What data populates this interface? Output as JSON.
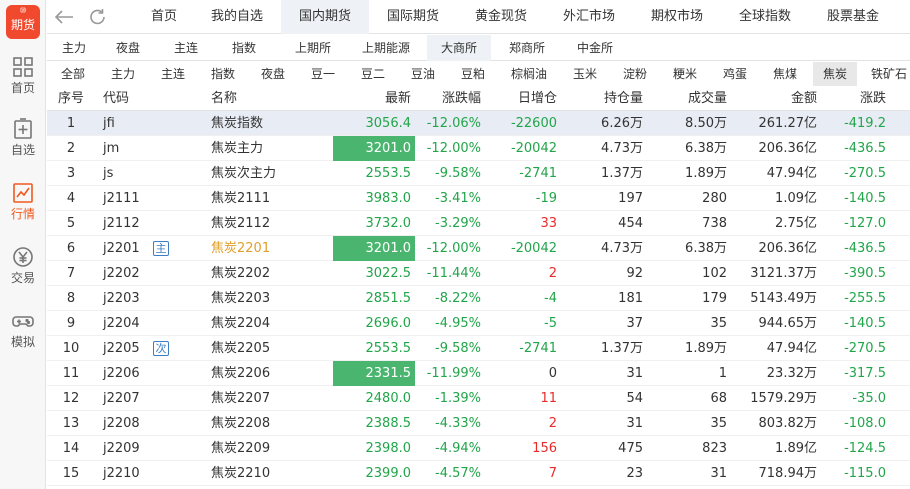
{
  "app": {
    "logo_cap": "⑩",
    "logo_text": "期货"
  },
  "sidebar": {
    "items": [
      {
        "label": "首页",
        "icon": "grid-icon",
        "active": false
      },
      {
        "label": "自选",
        "icon": "add-note-icon",
        "active": false
      },
      {
        "label": "行情",
        "icon": "chart-icon",
        "active": true
      },
      {
        "label": "交易",
        "icon": "yen-icon",
        "active": false
      },
      {
        "label": "模拟",
        "icon": "gamepad-icon",
        "active": false
      }
    ]
  },
  "topnav": {
    "back_icon": "back-arrow-icon",
    "refresh_icon": "refresh-icon",
    "tabs": [
      "首页",
      "我的自选",
      "国内期货",
      "国际期货",
      "黄金现货",
      "外汇市场",
      "期权市场",
      "全球指数",
      "股票基金"
    ],
    "active": 2
  },
  "exchange_tabs": {
    "items": [
      "主力",
      "夜盘",
      "主连",
      "指数",
      "上期所",
      "上期能源",
      "大商所",
      "郑商所",
      "中金所"
    ],
    "active": 6
  },
  "category_tabs": {
    "items": [
      "全部",
      "主力",
      "主连",
      "指数",
      "夜盘",
      "豆一",
      "豆二",
      "豆油",
      "豆粕",
      "棕榈油",
      "玉米",
      "淀粉",
      "粳米",
      "鸡蛋",
      "焦煤",
      "焦炭",
      "铁矿石"
    ],
    "active": 15
  },
  "table": {
    "headers": [
      "序号",
      "代码",
      "名称",
      "最新",
      "涨跌幅",
      "日增仓",
      "持仓量",
      "成交量",
      "金额",
      "涨跌"
    ],
    "rows": [
      {
        "seq": "1",
        "code": "jfi",
        "tag": "",
        "name": "焦炭指数",
        "last": "3056.4",
        "chg": "-12.06%",
        "inc": "-22600",
        "oi": "6.26万",
        "vol": "8.50万",
        "amt": "261.27亿",
        "diff": "-419.2",
        "last_box": false,
        "inc_color": "green",
        "name_color": "",
        "selected": true,
        "bold": true
      },
      {
        "seq": "2",
        "code": "jm",
        "tag": "",
        "name": "焦炭主力",
        "last": "3201.0",
        "chg": "-12.00%",
        "inc": "-20042",
        "oi": "4.73万",
        "vol": "6.38万",
        "amt": "206.36亿",
        "diff": "-436.5",
        "last_box": true,
        "inc_color": "green",
        "name_color": "",
        "selected": false,
        "bold": false
      },
      {
        "seq": "3",
        "code": "js",
        "tag": "",
        "name": "焦炭次主力",
        "last": "2553.5",
        "chg": "-9.58%",
        "inc": "-2741",
        "oi": "1.37万",
        "vol": "1.89万",
        "amt": "47.94亿",
        "diff": "-270.5",
        "last_box": false,
        "inc_color": "green",
        "name_color": "",
        "selected": false,
        "bold": false
      },
      {
        "seq": "4",
        "code": "j2111",
        "tag": "",
        "name": "焦炭2111",
        "last": "3983.0",
        "chg": "-3.41%",
        "inc": "-19",
        "oi": "197",
        "vol": "280",
        "amt": "1.09亿",
        "diff": "-140.5",
        "last_box": false,
        "inc_color": "green",
        "name_color": "",
        "selected": false,
        "bold": false
      },
      {
        "seq": "5",
        "code": "j2112",
        "tag": "",
        "name": "焦炭2112",
        "last": "3732.0",
        "chg": "-3.29%",
        "inc": "33",
        "oi": "454",
        "vol": "738",
        "amt": "2.75亿",
        "diff": "-127.0",
        "last_box": false,
        "inc_color": "red",
        "name_color": "",
        "selected": false,
        "bold": false
      },
      {
        "seq": "6",
        "code": "j2201",
        "tag": "主",
        "name": "焦炭2201",
        "last": "3201.0",
        "chg": "-12.00%",
        "inc": "-20042",
        "oi": "4.73万",
        "vol": "6.38万",
        "amt": "206.36亿",
        "diff": "-436.5",
        "last_box": true,
        "inc_color": "green",
        "name_color": "orange",
        "selected": false,
        "bold": false
      },
      {
        "seq": "7",
        "code": "j2202",
        "tag": "",
        "name": "焦炭2202",
        "last": "3022.5",
        "chg": "-11.44%",
        "inc": "2",
        "oi": "92",
        "vol": "102",
        "amt": "3121.37万",
        "diff": "-390.5",
        "last_box": false,
        "inc_color": "red",
        "name_color": "",
        "selected": false,
        "bold": false
      },
      {
        "seq": "8",
        "code": "j2203",
        "tag": "",
        "name": "焦炭2203",
        "last": "2851.5",
        "chg": "-8.22%",
        "inc": "-4",
        "oi": "181",
        "vol": "179",
        "amt": "5143.49万",
        "diff": "-255.5",
        "last_box": false,
        "inc_color": "green",
        "name_color": "",
        "selected": false,
        "bold": false
      },
      {
        "seq": "9",
        "code": "j2204",
        "tag": "",
        "name": "焦炭2204",
        "last": "2696.0",
        "chg": "-4.95%",
        "inc": "-5",
        "oi": "37",
        "vol": "35",
        "amt": "944.65万",
        "diff": "-140.5",
        "last_box": false,
        "inc_color": "green",
        "name_color": "",
        "selected": false,
        "bold": false
      },
      {
        "seq": "10",
        "code": "j2205",
        "tag": "次",
        "name": "焦炭2205",
        "last": "2553.5",
        "chg": "-9.58%",
        "inc": "-2741",
        "oi": "1.37万",
        "vol": "1.89万",
        "amt": "47.94亿",
        "diff": "-270.5",
        "last_box": false,
        "inc_color": "green",
        "name_color": "",
        "selected": false,
        "bold": false
      },
      {
        "seq": "11",
        "code": "j2206",
        "tag": "",
        "name": "焦炭2206",
        "last": "2331.5",
        "chg": "-11.99%",
        "inc": "0",
        "oi": "31",
        "vol": "1",
        "amt": "23.32万",
        "diff": "-317.5",
        "last_box": true,
        "inc_color": "",
        "name_color": "",
        "selected": false,
        "bold": false
      },
      {
        "seq": "12",
        "code": "j2207",
        "tag": "",
        "name": "焦炭2207",
        "last": "2480.0",
        "chg": "-1.39%",
        "inc": "11",
        "oi": "54",
        "vol": "68",
        "amt": "1579.29万",
        "diff": "-35.0",
        "last_box": false,
        "inc_color": "red",
        "name_color": "",
        "selected": false,
        "bold": false
      },
      {
        "seq": "13",
        "code": "j2208",
        "tag": "",
        "name": "焦炭2208",
        "last": "2388.5",
        "chg": "-4.33%",
        "inc": "2",
        "oi": "31",
        "vol": "35",
        "amt": "803.82万",
        "diff": "-108.0",
        "last_box": false,
        "inc_color": "red",
        "name_color": "",
        "selected": false,
        "bold": false
      },
      {
        "seq": "14",
        "code": "j2209",
        "tag": "",
        "name": "焦炭2209",
        "last": "2398.0",
        "chg": "-4.94%",
        "inc": "156",
        "oi": "475",
        "vol": "823",
        "amt": "1.89亿",
        "diff": "-124.5",
        "last_box": false,
        "inc_color": "red",
        "name_color": "",
        "selected": false,
        "bold": false
      },
      {
        "seq": "15",
        "code": "j2210",
        "tag": "",
        "name": "焦炭2210",
        "last": "2399.0",
        "chg": "-4.57%",
        "inc": "7",
        "oi": "23",
        "vol": "31",
        "amt": "718.94万",
        "diff": "-115.0",
        "last_box": false,
        "inc_color": "red",
        "name_color": "",
        "selected": false,
        "bold": false
      }
    ]
  },
  "colors": {
    "up": "#e82c2c",
    "down": "#22a54a",
    "accent": "#ef5a1f",
    "highlight": "#49b56e",
    "selected_row": "#e8ecf4"
  }
}
